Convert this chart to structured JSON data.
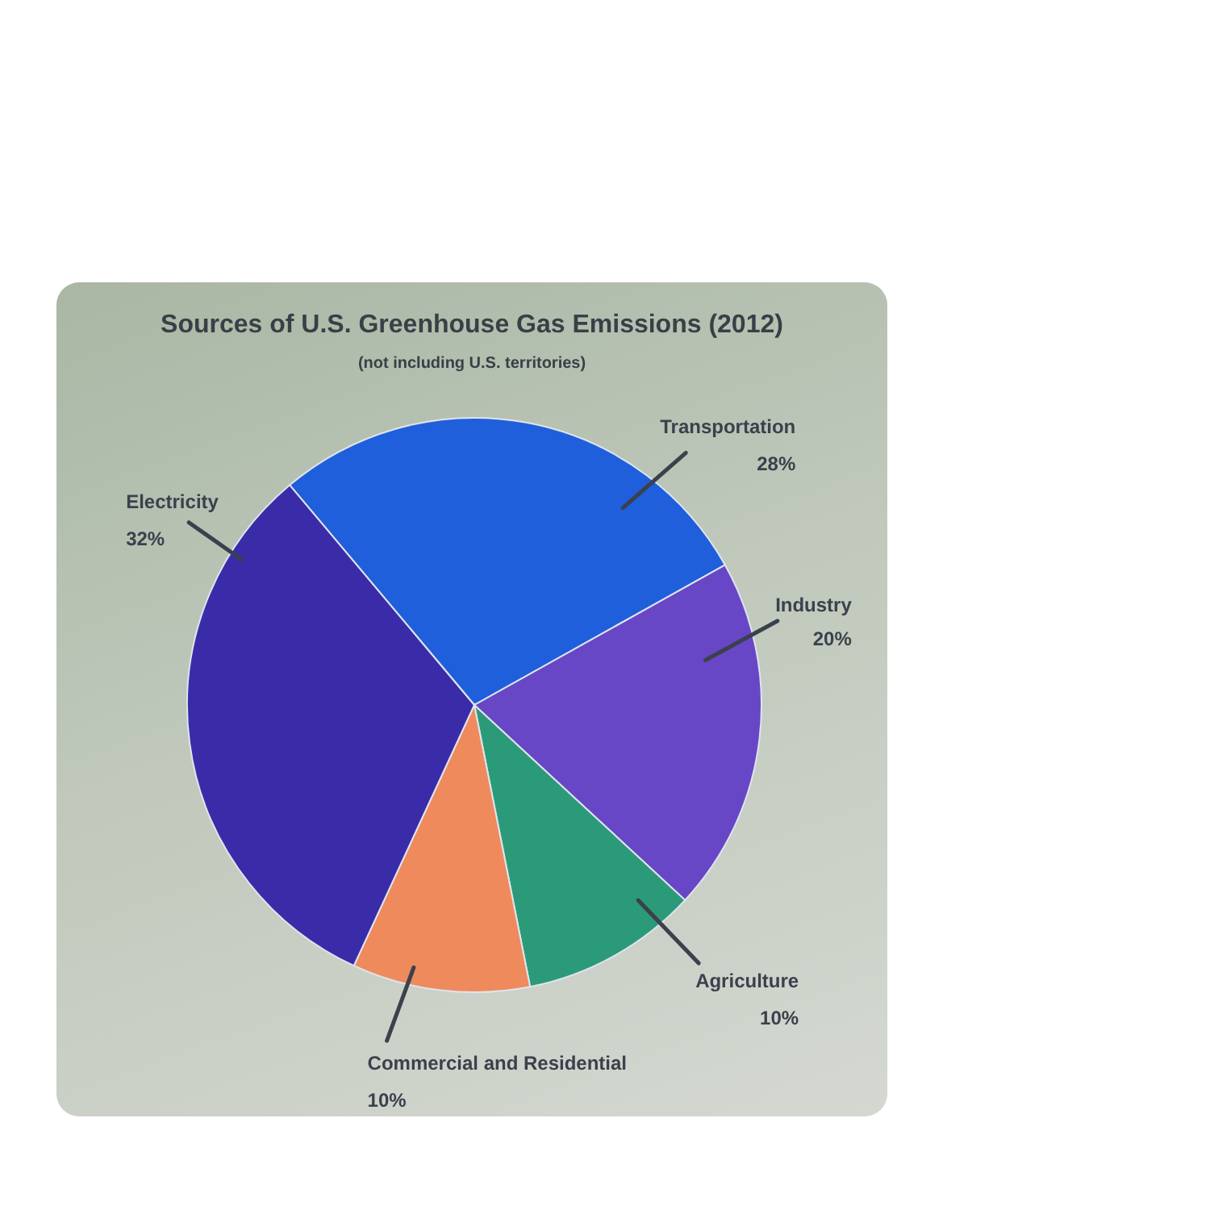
{
  "chart_data": {
    "type": "pie",
    "title": "Sources of U.S. Greenhouse Gas Emissions (2012)",
    "subtitle": "(not including U.S. territories)",
    "categories": [
      "Transportation",
      "Industry",
      "Agriculture",
      "Commercial and Residential",
      "Electricity"
    ],
    "values": [
      28,
      20,
      10,
      10,
      32
    ],
    "colors": [
      "#1f5fdb",
      "#6847c6",
      "#2b9a79",
      "#ef8a5d",
      "#3a2ca8"
    ],
    "value_labels": [
      "28%",
      "20%",
      "10%",
      "10%",
      "32%"
    ]
  }
}
